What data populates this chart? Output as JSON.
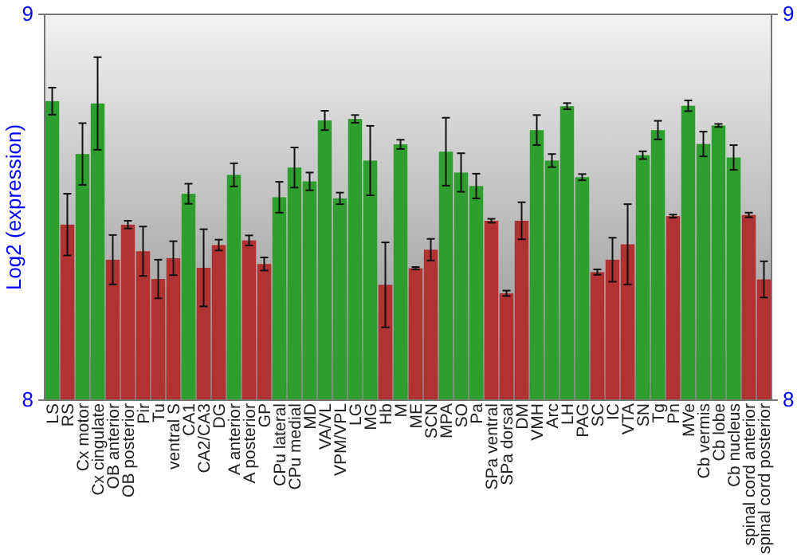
{
  "chart_data": {
    "type": "bar",
    "ylabel": "Log2 (expression)",
    "categories": [
      "LS",
      "RS",
      "Cx motor",
      "Cx cingulate",
      "OB anterior",
      "OB posterior",
      "Pir",
      "Tu",
      "ventral S",
      "CA1",
      "CA2/CA3",
      "DG",
      "A anterior",
      "A posterior",
      "GP",
      "CPu lateral",
      "CPu medial",
      "MD",
      "VA/VL",
      "VPM/VPL",
      "LG",
      "MG",
      "Hb",
      "M",
      "ME",
      "SCN",
      "MPA",
      "SO",
      "Pa",
      "SPa ventral",
      "SPa dorsal",
      "DM",
      "VMH",
      "Arc",
      "LH",
      "PAG",
      "SC",
      "IC",
      "VTA",
      "SN",
      "Tg",
      "Pn",
      "MVe",
      "Cb vermis",
      "Cb lobe",
      "Cb nucleus",
      "spinal cord anterior",
      "spinal cord posterior"
    ],
    "values": [
      8.775,
      8.455,
      8.638,
      8.769,
      8.364,
      8.455,
      8.386,
      8.314,
      8.368,
      8.535,
      8.343,
      8.402,
      8.584,
      8.414,
      8.353,
      8.526,
      8.603,
      8.567,
      8.725,
      8.523,
      8.729,
      8.621,
      8.299,
      8.663,
      8.342,
      8.39,
      8.644,
      8.59,
      8.555,
      8.465,
      8.277,
      8.465,
      8.7,
      8.621,
      8.762,
      8.578,
      8.332,
      8.364,
      8.404,
      8.635,
      8.7,
      8.477,
      8.763,
      8.664,
      8.712,
      8.629,
      8.48,
      8.313
    ],
    "errors": [
      0.035,
      0.08,
      0.08,
      0.12,
      0.064,
      0.01,
      0.064,
      0.05,
      0.044,
      0.026,
      0.1,
      0.014,
      0.03,
      0.013,
      0.017,
      0.04,
      0.052,
      0.023,
      0.025,
      0.015,
      0.01,
      0.09,
      0.11,
      0.012,
      0.003,
      0.028,
      0.088,
      0.05,
      0.032,
      0.005,
      0.007,
      0.048,
      0.039,
      0.017,
      0.008,
      0.008,
      0.007,
      0.057,
      0.104,
      0.01,
      0.024,
      0.004,
      0.014,
      0.032,
      0.004,
      0.032,
      0.006,
      0.047
    ],
    "colors": [
      "#2e9e2e",
      "#b03232",
      "#2e9e2e",
      "#2e9e2e",
      "#b03232",
      "#b03232",
      "#b03232",
      "#b03232",
      "#b03232",
      "#2e9e2e",
      "#b03232",
      "#b03232",
      "#2e9e2e",
      "#b03232",
      "#b03232",
      "#2e9e2e",
      "#2e9e2e",
      "#2e9e2e",
      "#2e9e2e",
      "#2e9e2e",
      "#2e9e2e",
      "#2e9e2e",
      "#b03232",
      "#2e9e2e",
      "#b03232",
      "#b03232",
      "#2e9e2e",
      "#2e9e2e",
      "#2e9e2e",
      "#b03232",
      "#b03232",
      "#b03232",
      "#2e9e2e",
      "#2e9e2e",
      "#2e9e2e",
      "#2e9e2e",
      "#b03232",
      "#b03232",
      "#b03232",
      "#2e9e2e",
      "#2e9e2e",
      "#b03232",
      "#2e9e2e",
      "#2e9e2e",
      "#2e9e2e",
      "#2e9e2e",
      "#b03232",
      "#b03232"
    ],
    "ylim": [
      8,
      9
    ],
    "yticks": [
      8,
      9
    ],
    "y2lim": [
      8,
      9
    ],
    "y2ticks": [
      8,
      9
    ]
  }
}
